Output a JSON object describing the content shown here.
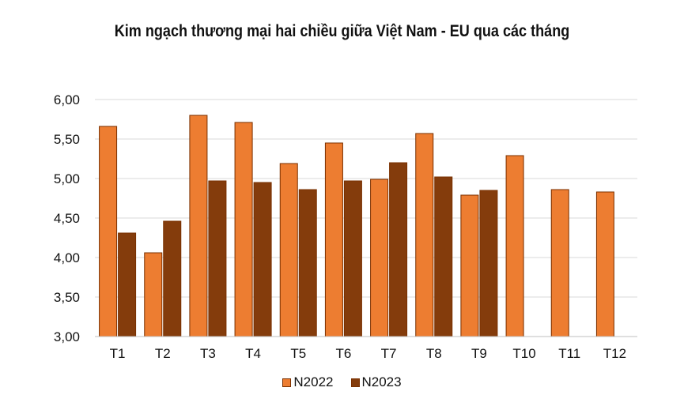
{
  "chart_data": {
    "type": "bar",
    "title": "Kim ngạch thương mại hai chiều giữa Việt Nam - EU qua các tháng",
    "xlabel": "",
    "ylabel": "",
    "categories": [
      "T1",
      "T2",
      "T3",
      "T4",
      "T5",
      "T6",
      "T7",
      "T8",
      "T9",
      "T10",
      "T11",
      "T12"
    ],
    "ylim": [
      3.0,
      6.0
    ],
    "yticks": [
      "3,00",
      "3,50",
      "4,00",
      "4,50",
      "5,00",
      "5,50",
      "6,00"
    ],
    "grid": true,
    "legend_position": "bottom",
    "series": [
      {
        "name": "N2022",
        "color": "#ED7D31",
        "values": [
          5.66,
          4.06,
          5.8,
          5.71,
          5.19,
          5.45,
          4.99,
          5.57,
          4.79,
          5.29,
          4.86,
          4.83
        ]
      },
      {
        "name": "N2023",
        "color": "#843C0C",
        "values": [
          4.31,
          4.46,
          4.97,
          4.95,
          4.86,
          4.97,
          5.2,
          5.02,
          4.85,
          null,
          null,
          null
        ]
      }
    ]
  }
}
